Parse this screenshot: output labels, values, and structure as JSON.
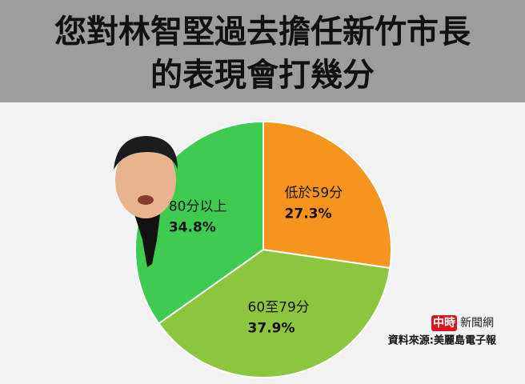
{
  "chart_data": {
    "type": "pie",
    "title_lines": [
      "您對林智堅過去擔任新竹市長",
      "的表現會打幾分"
    ],
    "categories": [
      "低於59分",
      "60至79分",
      "80分以上"
    ],
    "values": [
      27.3,
      37.9,
      34.8
    ],
    "value_labels": [
      "27.3%",
      "37.9%",
      "34.8%"
    ],
    "colors": [
      "#f7941d",
      "#8cc63f",
      "#3ecb4f"
    ],
    "start_angle": 0,
    "direction": "clockwise",
    "logo": [
      "中時",
      "新聞網"
    ],
    "source": "資料來源:美麗島電子報"
  }
}
